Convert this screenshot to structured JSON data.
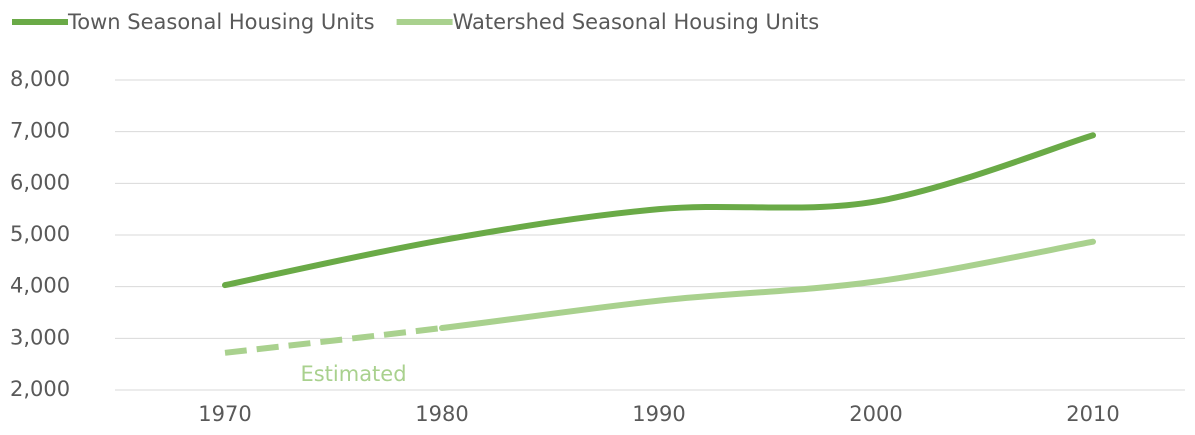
{
  "chart_data": {
    "type": "line",
    "categories": [
      "1970",
      "1980",
      "1990",
      "2000",
      "2010"
    ],
    "series": [
      {
        "name": "Town Seasonal Housing Units",
        "color": "#6aaa47",
        "values": [
          4030,
          4900,
          5500,
          5650,
          6930
        ]
      },
      {
        "name": "Watershed Seasonal Housing Units",
        "color": "#a9d18e",
        "values": [
          2720,
          3200,
          3730,
          4100,
          4870
        ],
        "estimated_through": "1980"
      }
    ],
    "annotation": "Estimated",
    "ylim": [
      2000,
      8000
    ],
    "yticks": [
      {
        "value": 2000,
        "label": "2,000"
      },
      {
        "value": 3000,
        "label": "3,000"
      },
      {
        "value": 4000,
        "label": "4,000"
      },
      {
        "value": 5000,
        "label": "5,000"
      },
      {
        "value": 6000,
        "label": "6,000"
      },
      {
        "value": 7000,
        "label": "7,000"
      },
      {
        "value": 8000,
        "label": "8,000"
      }
    ],
    "grid": true,
    "legend": "top",
    "smooth": true
  }
}
